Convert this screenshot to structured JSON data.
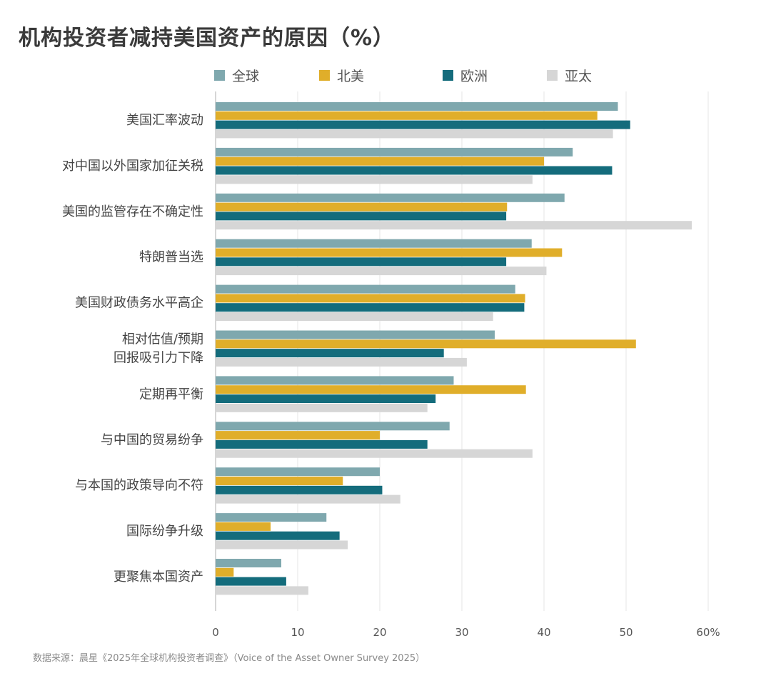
{
  "title": "机构投资者减持美国资产的原因（%）",
  "source": "数据来源：晨星《2025年全球机构投资者调查》（Voice of the Asset Owner Survey 2025）",
  "colors": {
    "global": "#7fa8ae",
    "north_america": "#e0ae2a",
    "europe": "#146c7c",
    "asia_pacific": "#d6d6d6",
    "gridline": "#e4e4e4",
    "axis": "#c8c8c8",
    "label_text": "#444444",
    "tick_text": "#555555"
  },
  "chart_data": {
    "type": "bar",
    "orientation": "horizontal",
    "title": "机构投资者减持美国资产的原因（%）",
    "categories": [
      "美国汇率波动",
      "对中国以外国家加征关税",
      "美国的监管存在不确定性",
      "特朗普当选",
      "美国财政债务水平高企",
      "相对估值/预期\n回报吸引力下降",
      "定期再平衡",
      "与中国的贸易纷争",
      "与本国的政策导向不符",
      "国际纷争升级",
      "更聚焦本国资产"
    ],
    "series": [
      {
        "name": "全球",
        "color": "#7fa8ae",
        "values": [
          49,
          43.5,
          42.5,
          38.5,
          36.5,
          34,
          29,
          28.5,
          20,
          13.5,
          8
        ]
      },
      {
        "name": "北美",
        "color": "#e0ae2a",
        "values": [
          46.5,
          40,
          35.5,
          42.2,
          37.7,
          51.2,
          37.8,
          20,
          15.5,
          6.7,
          2.2
        ]
      },
      {
        "name": "欧洲",
        "color": "#146c7c",
        "values": [
          50.5,
          48.3,
          35.4,
          35.4,
          37.6,
          27.8,
          26.8,
          25.8,
          20.3,
          15.1,
          8.6
        ]
      },
      {
        "name": "亚太",
        "color": "#d6d6d6",
        "values": [
          48.4,
          38.6,
          58,
          40.3,
          33.8,
          30.6,
          25.8,
          38.6,
          22.5,
          16.1,
          11.3
        ]
      }
    ],
    "xlim": [
      0,
      60
    ],
    "xticks": [
      "0",
      "10",
      "20",
      "30",
      "40",
      "50",
      "60%"
    ],
    "xtick_values": [
      0,
      10,
      20,
      30,
      40,
      50,
      60
    ],
    "grid": true,
    "legend_position": "top"
  }
}
